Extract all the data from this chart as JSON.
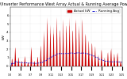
{
  "title": "Solar PV/Inverter Performance West Array Actual & Running Average Power Output",
  "title_fontsize": 3.5,
  "background_color": "#ffffff",
  "plot_bg_color": "#ffffff",
  "grid_color": "#aaaaaa",
  "bar_color": "#cc0000",
  "avg_line_color": "#0000cc",
  "ylim": [
    0,
    7
  ],
  "num_days": 35,
  "samples_per_day": 24,
  "legend_actual": "Actual kW",
  "legend_avg": "Running Avg",
  "legend_fontsize": 3.0,
  "tick_fontsize": 2.8,
  "ylabel": "kW",
  "ylabel_fontsize": 3.2
}
